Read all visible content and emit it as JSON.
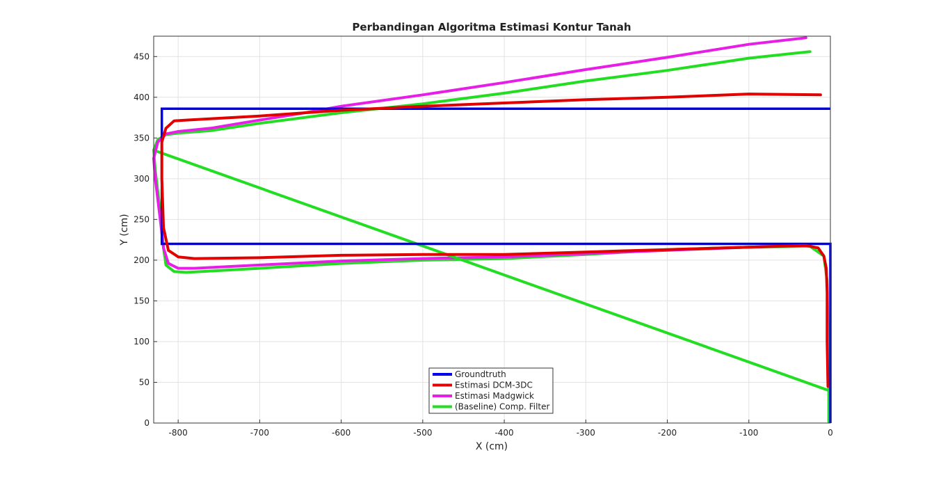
{
  "chart_data": {
    "type": "line",
    "title": "Perbandingan Algoritma Estimasi Kontur Tanah",
    "xlabel": "X (cm)",
    "ylabel": "Y (cm)",
    "xlim": [
      -830,
      0
    ],
    "ylim": [
      0,
      475
    ],
    "xticks": [
      -800,
      -700,
      -600,
      -500,
      -400,
      -300,
      -200,
      -100,
      0
    ],
    "yticks": [
      0,
      50,
      100,
      150,
      200,
      250,
      300,
      350,
      400,
      450
    ],
    "grid": true,
    "legend_position": "bottom-center",
    "series": [
      {
        "name": "Groundtruth",
        "color": "#0000ee",
        "points": [
          [
            0,
            0
          ],
          [
            0,
            220
          ],
          [
            -820,
            220
          ],
          [
            -820,
            386
          ],
          [
            0,
            386
          ]
        ]
      },
      {
        "name": "Estimasi DCM-3DC",
        "color": "#e00000",
        "points": [
          [
            -3,
            45
          ],
          [
            -4,
            100
          ],
          [
            -4,
            160
          ],
          [
            -5,
            190
          ],
          [
            -8,
            205
          ],
          [
            -15,
            215
          ],
          [
            -30,
            218
          ],
          [
            -100,
            216
          ],
          [
            -200,
            213
          ],
          [
            -300,
            210
          ],
          [
            -400,
            207
          ],
          [
            -500,
            207
          ],
          [
            -600,
            206
          ],
          [
            -700,
            203
          ],
          [
            -780,
            202
          ],
          [
            -800,
            204
          ],
          [
            -812,
            212
          ],
          [
            -818,
            240
          ],
          [
            -820,
            300
          ],
          [
            -820,
            345
          ],
          [
            -815,
            362
          ],
          [
            -805,
            371
          ],
          [
            -790,
            372
          ],
          [
            -700,
            377
          ],
          [
            -600,
            384
          ],
          [
            -500,
            389
          ],
          [
            -400,
            393
          ],
          [
            -300,
            397
          ],
          [
            -200,
            400
          ],
          [
            -100,
            404
          ],
          [
            -12,
            403
          ]
        ]
      },
      {
        "name": "Estimasi Madgwick",
        "color": "#e61ee6",
        "points": [
          [
            -830,
            325
          ],
          [
            -825,
            345
          ],
          [
            -815,
            355
          ],
          [
            -800,
            358
          ],
          [
            -760,
            362
          ],
          [
            -700,
            372
          ],
          [
            -650,
            380
          ],
          [
            -600,
            389
          ],
          [
            -500,
            403
          ],
          [
            -400,
            418
          ],
          [
            -300,
            434
          ],
          [
            -200,
            449
          ],
          [
            -100,
            465
          ],
          [
            -30,
            473
          ]
        ]
      },
      {
        "name": "(Baseline) Comp. Filter",
        "color": "#22dd22",
        "points": [
          [
            -2,
            2
          ],
          [
            -2,
            40
          ],
          [
            -830,
            335
          ],
          [
            -825,
            348
          ],
          [
            -815,
            354
          ],
          [
            -800,
            356
          ],
          [
            -760,
            359
          ],
          [
            -700,
            368
          ],
          [
            -600,
            381
          ],
          [
            -500,
            392
          ],
          [
            -400,
            405
          ],
          [
            -300,
            420
          ],
          [
            -200,
            433
          ],
          [
            -100,
            448
          ],
          [
            -25,
            456
          ]
        ]
      }
    ],
    "extra_segments": {
      "madgwick_lower": [
        [
          -25,
          218
        ],
        [
          -100,
          216
        ],
        [
          -200,
          212
        ],
        [
          -300,
          208
        ],
        [
          -400,
          204
        ],
        [
          -500,
          202
        ],
        [
          -600,
          199
        ],
        [
          -700,
          194
        ],
        [
          -780,
          190
        ],
        [
          -800,
          190
        ],
        [
          -812,
          196
        ],
        [
          -818,
          215
        ],
        [
          -822,
          250
        ],
        [
          -828,
          300
        ],
        [
          -830,
          325
        ]
      ],
      "comp_lower": [
        [
          -2,
          40
        ],
        [
          -3,
          120
        ],
        [
          -4,
          175
        ],
        [
          -8,
          205
        ],
        [
          -25,
          217
        ],
        [
          -100,
          216
        ],
        [
          -200,
          213
        ],
        [
          -300,
          207
        ],
        [
          -400,
          202
        ],
        [
          -500,
          200
        ],
        [
          -600,
          196
        ],
        [
          -700,
          190
        ],
        [
          -790,
          185
        ],
        [
          -805,
          186
        ],
        [
          -815,
          194
        ],
        [
          -818,
          215
        ],
        [
          -822,
          260
        ],
        [
          -828,
          310
        ],
        [
          -830,
          335
        ]
      ]
    }
  }
}
